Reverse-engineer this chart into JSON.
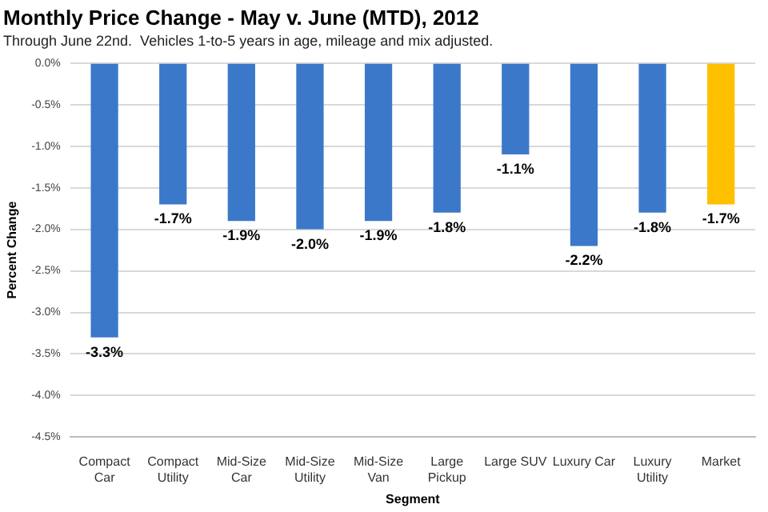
{
  "chart_data": {
    "type": "bar",
    "title": "Monthly Price Change - May v. June (MTD), 2012",
    "subtitle": "Through June 22nd.  Vehicles 1-to-5 years in age, mileage and mix adjusted.",
    "xlabel": "Segment",
    "ylabel": "Percent Change",
    "categories": [
      "Compact Car",
      "Compact Utility",
      "Mid-Size Car",
      "Mid-Size Utility",
      "Mid-Size Van",
      "Large Pickup",
      "Large SUV",
      "Luxury Car",
      "Luxury Utility",
      "Market"
    ],
    "values": [
      -3.3,
      -1.7,
      -1.9,
      -2.0,
      -1.9,
      -1.8,
      -1.1,
      -2.2,
      -1.8,
      -1.7
    ],
    "value_labels": [
      "-3.3%",
      "-1.7%",
      "-1.9%",
      "-2.0%",
      "-1.9%",
      "-1.8%",
      "-1.1%",
      "-2.2%",
      "-1.8%",
      "-1.7%"
    ],
    "colors": [
      "#3b78c9",
      "#3b78c9",
      "#3b78c9",
      "#3b78c9",
      "#3b78c9",
      "#3b78c9",
      "#3b78c9",
      "#3b78c9",
      "#3b78c9",
      "#ffc000"
    ],
    "ylim": [
      -4.5,
      0
    ],
    "yticks": [
      {
        "value": 0,
        "label": "0.0%"
      },
      {
        "value": -0.5,
        "label": "-0.5%"
      },
      {
        "value": -1,
        "label": "-1.0%"
      },
      {
        "value": -1.5,
        "label": "-1.5%"
      },
      {
        "value": -2,
        "label": "-2.0%"
      },
      {
        "value": -2.5,
        "label": "-2.5%"
      },
      {
        "value": -3,
        "label": "-3.0%"
      },
      {
        "value": -3.5,
        "label": "-3.5%"
      },
      {
        "value": -4,
        "label": "-4.0%"
      },
      {
        "value": -4.5,
        "label": "-4.5%"
      }
    ],
    "grid": "y"
  }
}
